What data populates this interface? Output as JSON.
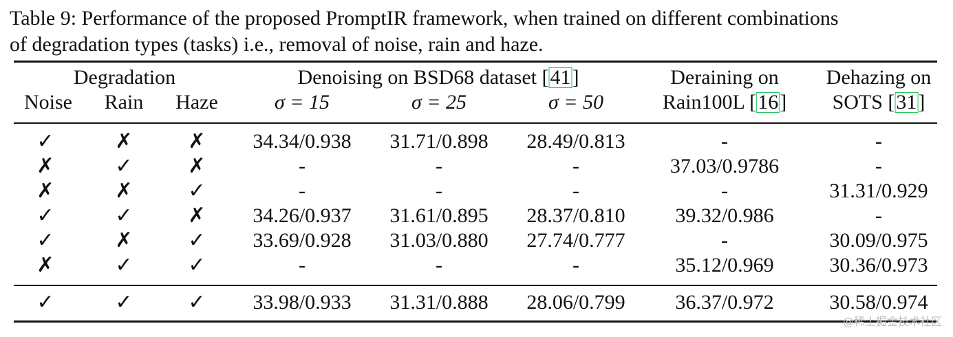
{
  "caption": {
    "line1": "Table 9: Performance of the proposed PromptIR framework, when trained on different combinations",
    "line2": "of degradation types (tasks) i.e., removal of noise, rain and haze."
  },
  "headers": {
    "degradation": "Degradation",
    "noise": "Noise",
    "rain": "Rain",
    "haze": "Haze",
    "denoising": {
      "prefix": "Denoising on BSD68 dataset [",
      "cite": "41",
      "suffix": "]"
    },
    "sigma15": "σ = 15",
    "sigma25": "σ = 25",
    "sigma50": "σ = 50",
    "deraining_line1": "Deraining on",
    "deraining_line2": {
      "prefix": "Rain100L [",
      "cite": "16",
      "suffix": "]"
    },
    "dehazing_line1": "Dehazing on",
    "dehazing_line2": {
      "prefix": "SOTS [",
      "cite": "31",
      "suffix": "]"
    }
  },
  "rows": [
    {
      "noise": "✓",
      "rain": "✗",
      "haze": "✗",
      "s15": "34.34/0.938",
      "s25": "31.71/0.898",
      "s50": "28.49/0.813",
      "derain": "-",
      "dehaze": "-"
    },
    {
      "noise": "✗",
      "rain": "✓",
      "haze": "✗",
      "s15": "-",
      "s25": "-",
      "s50": "-",
      "derain": "37.03/0.9786",
      "dehaze": "-"
    },
    {
      "noise": "✗",
      "rain": "✗",
      "haze": "✓",
      "s15": "-",
      "s25": "-",
      "s50": "-",
      "derain": "-",
      "dehaze": "31.31/0.929"
    },
    {
      "noise": "✓",
      "rain": "✓",
      "haze": "✗",
      "s15": "34.26/0.937",
      "s25": "31.61/0.895",
      "s50": "28.37/0.810",
      "derain": "39.32/0.986",
      "dehaze": "-"
    },
    {
      "noise": "✓",
      "rain": "✗",
      "haze": "✓",
      "s15": "33.69/0.928",
      "s25": "31.03/0.880",
      "s50": "27.74/0.777",
      "derain": "-",
      "dehaze": "30.09/0.975"
    },
    {
      "noise": "✗",
      "rain": "✓",
      "haze": "✓",
      "s15": "-",
      "s25": "-",
      "s50": "-",
      "derain": "35.12/0.969",
      "dehaze": "30.36/0.973"
    }
  ],
  "final_row": {
    "noise": "✓",
    "rain": "✓",
    "haze": "✓",
    "s15": "33.98/0.933",
    "s25": "31.31/0.888",
    "s50": "28.06/0.799",
    "derain": "36.37/0.972",
    "dehaze": "30.58/0.974"
  },
  "watermark": "@稀土掘金技术社区"
}
